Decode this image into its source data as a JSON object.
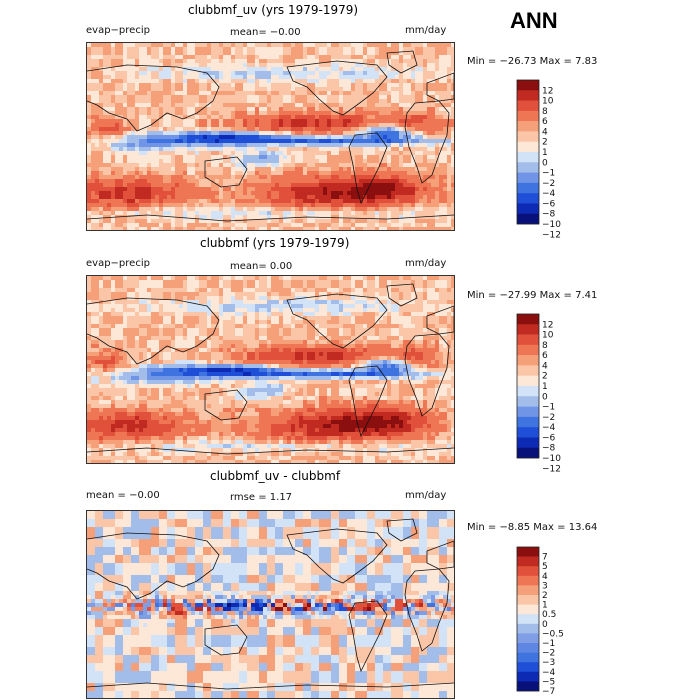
{
  "season": "ANN",
  "colors": {
    "scale12": [
      "#08107a",
      "#0d2ab5",
      "#1f4fd6",
      "#3f73e0",
      "#7095e6",
      "#a3bdeb",
      "#d2e3f7",
      "#fde8d8",
      "#fbc6a8",
      "#f6a07a",
      "#ef7654",
      "#e0503a",
      "#c02a20",
      "#8b0f0f"
    ],
    "scale7": [
      "#08107a",
      "#0d2ab5",
      "#1f4fd6",
      "#3f73e0",
      "#5e86e2",
      "#7f9ee6",
      "#a3bdeb",
      "#d2e3f7",
      "#fde8d8",
      "#fbc6a8",
      "#f6a07a",
      "#ef7654",
      "#e0503a",
      "#c02a20",
      "#8b0f0f"
    ],
    "land_outline": "#111111"
  },
  "panels": [
    {
      "title": "clubbmf_uv (yrs 1979-1979)",
      "left_label": "evap−precip",
      "mean_text": "mean=   −0.00",
      "units": "mm/day",
      "minmax_text": "Min = −26.73  Max =    7.83",
      "colorbar_ticks": [
        "12",
        "10",
        "8",
        "6",
        "4",
        "2",
        "1",
        "0",
        "−1",
        "−2",
        "−4",
        "−6",
        "−8",
        "−10",
        "−12"
      ],
      "icon": "contour-map"
    },
    {
      "title": "clubbmf (yrs 1979-1979)",
      "left_label": "evap−precip",
      "mean_text": "mean=    0.00",
      "units": "mm/day",
      "minmax_text": "Min = −27.99  Max =    7.41",
      "colorbar_ticks": [
        "12",
        "10",
        "8",
        "6",
        "4",
        "2",
        "1",
        "0",
        "−1",
        "−2",
        "−4",
        "−6",
        "−8",
        "−10",
        "−12"
      ],
      "icon": "contour-map"
    },
    {
      "title": "clubbmf_uv - clubbmf",
      "left_label": "mean =   −0.00",
      "mean_text": "rmse =    1.17",
      "units": "mm/day",
      "minmax_text": "Min =  −8.85  Max =   13.64",
      "colorbar_ticks": [
        "7",
        "5",
        "4",
        "3",
        "2",
        "1",
        "0.5",
        "0",
        "−0.5",
        "−1",
        "−2",
        "−3",
        "−4",
        "−5",
        "−7"
      ],
      "icon": "contour-map"
    }
  ],
  "chart_data": [
    {
      "type": "heatmap",
      "title": "clubbmf_uv (yrs 1979-1979)",
      "variable": "evap−precip",
      "units": "mm/day",
      "mean": -0.0,
      "min": -26.73,
      "max": 7.83,
      "contour_levels": [
        -12,
        -10,
        -8,
        -6,
        -4,
        -2,
        -1,
        0,
        1,
        2,
        4,
        6,
        8,
        10,
        12
      ]
    },
    {
      "type": "heatmap",
      "title": "clubbmf (yrs 1979-1979)",
      "variable": "evap−precip",
      "units": "mm/day",
      "mean": 0.0,
      "min": -27.99,
      "max": 7.41,
      "contour_levels": [
        -12,
        -10,
        -8,
        -6,
        -4,
        -2,
        -1,
        0,
        1,
        2,
        4,
        6,
        8,
        10,
        12
      ]
    },
    {
      "type": "heatmap",
      "title": "clubbmf_uv - clubbmf",
      "units": "mm/day",
      "mean": -0.0,
      "rmse": 1.17,
      "min": -8.85,
      "max": 13.64,
      "contour_levels": [
        -7,
        -5,
        -4,
        -3,
        -2,
        -1,
        -0.5,
        0,
        0.5,
        1,
        2,
        3,
        4,
        5,
        7
      ]
    }
  ]
}
